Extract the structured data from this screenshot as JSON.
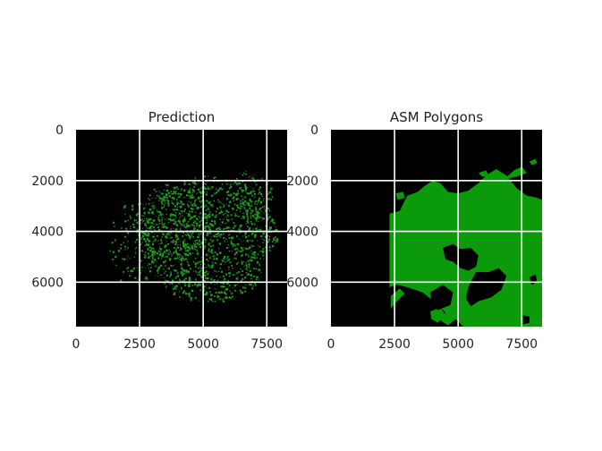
{
  "chart_data": [
    {
      "type": "heatmap",
      "title": "Prediction",
      "xlim": [
        0,
        8300
      ],
      "ylim": [
        0,
        7750
      ],
      "y_inverted": true,
      "xticks": [
        0,
        2500,
        5000,
        7500
      ],
      "yticks": [
        0,
        2000,
        4000,
        6000
      ],
      "xtick_labels": [
        "0",
        "2500",
        "5000",
        "7500"
      ],
      "ytick_labels": [
        "0",
        "2000",
        "4000",
        "6000"
      ],
      "grid": true,
      "colors": {
        "background": "#000000",
        "foreground": "#1f9a1f",
        "grid": "#ffffff"
      },
      "mask_kind": "scattered_points",
      "regions": [
        {
          "cx": 5200,
          "cy": 4300,
          "rx": 2700,
          "ry": 2500,
          "density": 0.55
        },
        {
          "cx": 3800,
          "cy": 3600,
          "rx": 1500,
          "ry": 1500,
          "density": 0.4
        },
        {
          "cx": 2200,
          "cy": 4500,
          "rx": 900,
          "ry": 1700,
          "density": 0.2
        },
        {
          "cx": 6800,
          "cy": 2600,
          "rx": 900,
          "ry": 1000,
          "density": 0.35
        }
      ]
    },
    {
      "type": "heatmap",
      "title": "ASM Polygons",
      "xlim": [
        0,
        8300
      ],
      "ylim": [
        0,
        7750
      ],
      "y_inverted": true,
      "xticks": [
        0,
        2500,
        5000,
        7500
      ],
      "yticks": [
        0,
        2000,
        4000,
        6000
      ],
      "xtick_labels": [
        "0",
        "2500",
        "5000",
        "7500"
      ],
      "ytick_labels": [
        "0",
        "2000",
        "4000",
        "6000"
      ],
      "grid": true,
      "colors": {
        "background": "#000000",
        "foreground": "#0a9a0a",
        "grid": "#ffffff"
      },
      "mask_kind": "polygons",
      "polygons": [
        [
          [
            2300,
            3300
          ],
          [
            2700,
            3200
          ],
          [
            3000,
            2600
          ],
          [
            3400,
            2450
          ],
          [
            3700,
            2200
          ],
          [
            4000,
            2000
          ],
          [
            4300,
            2100
          ],
          [
            4600,
            2450
          ],
          [
            5000,
            2500
          ],
          [
            5400,
            2400
          ],
          [
            5800,
            2100
          ],
          [
            6100,
            1800
          ],
          [
            6500,
            1550
          ],
          [
            6900,
            1800
          ],
          [
            7300,
            2300
          ],
          [
            7700,
            2600
          ],
          [
            8000,
            2650
          ],
          [
            8300,
            2750
          ],
          [
            8300,
            7750
          ],
          [
            5200,
            7750
          ],
          [
            4900,
            7450
          ],
          [
            4600,
            7700
          ],
          [
            4300,
            7500
          ],
          [
            4500,
            7200
          ],
          [
            4100,
            6800
          ],
          [
            3600,
            6400
          ],
          [
            3000,
            6200
          ],
          [
            2600,
            6100
          ],
          [
            2300,
            6200
          ]
        ],
        [
          [
            6800,
            1950
          ],
          [
            7200,
            1600
          ],
          [
            7500,
            1450
          ],
          [
            7700,
            1700
          ],
          [
            7300,
            1850
          ]
        ],
        [
          [
            7800,
            1250
          ],
          [
            8050,
            1150
          ],
          [
            8100,
            1300
          ],
          [
            7900,
            1400
          ]
        ],
        [
          [
            5800,
            1700
          ],
          [
            6100,
            1600
          ],
          [
            6200,
            1800
          ],
          [
            5950,
            1850
          ]
        ],
        [
          [
            2350,
            6550
          ],
          [
            2700,
            6250
          ],
          [
            2900,
            6450
          ],
          [
            2550,
            6800
          ],
          [
            2350,
            7050
          ]
        ],
        [
          [
            3900,
            7150
          ],
          [
            4300,
            7000
          ],
          [
            4500,
            7300
          ],
          [
            4200,
            7600
          ],
          [
            3950,
            7450
          ]
        ],
        [
          [
            2550,
            2500
          ],
          [
            2850,
            2450
          ],
          [
            2900,
            2700
          ],
          [
            2600,
            2750
          ]
        ]
      ],
      "holes": [
        [
          [
            4400,
            4650
          ],
          [
            4800,
            4500
          ],
          [
            5100,
            4700
          ],
          [
            5500,
            4650
          ],
          [
            5800,
            4950
          ],
          [
            5700,
            5400
          ],
          [
            5400,
            5550
          ],
          [
            5100,
            5450
          ],
          [
            4800,
            5200
          ],
          [
            4500,
            5100
          ]
        ],
        [
          [
            5700,
            5600
          ],
          [
            6200,
            5600
          ],
          [
            6600,
            5450
          ],
          [
            6900,
            5750
          ],
          [
            6700,
            6300
          ],
          [
            6300,
            6600
          ],
          [
            5800,
            6750
          ],
          [
            5500,
            6950
          ],
          [
            5300,
            6650
          ],
          [
            5400,
            6200
          ]
        ],
        [
          [
            3900,
            6400
          ],
          [
            4400,
            6100
          ],
          [
            4800,
            6400
          ],
          [
            4700,
            6900
          ],
          [
            4200,
            7100
          ],
          [
            3950,
            6800
          ]
        ],
        [
          [
            7550,
            7300
          ],
          [
            7800,
            7350
          ],
          [
            7800,
            7600
          ],
          [
            7550,
            7650
          ]
        ],
        [
          [
            7800,
            5800
          ],
          [
            8050,
            5700
          ],
          [
            8100,
            6000
          ],
          [
            7900,
            6100
          ]
        ]
      ]
    }
  ]
}
